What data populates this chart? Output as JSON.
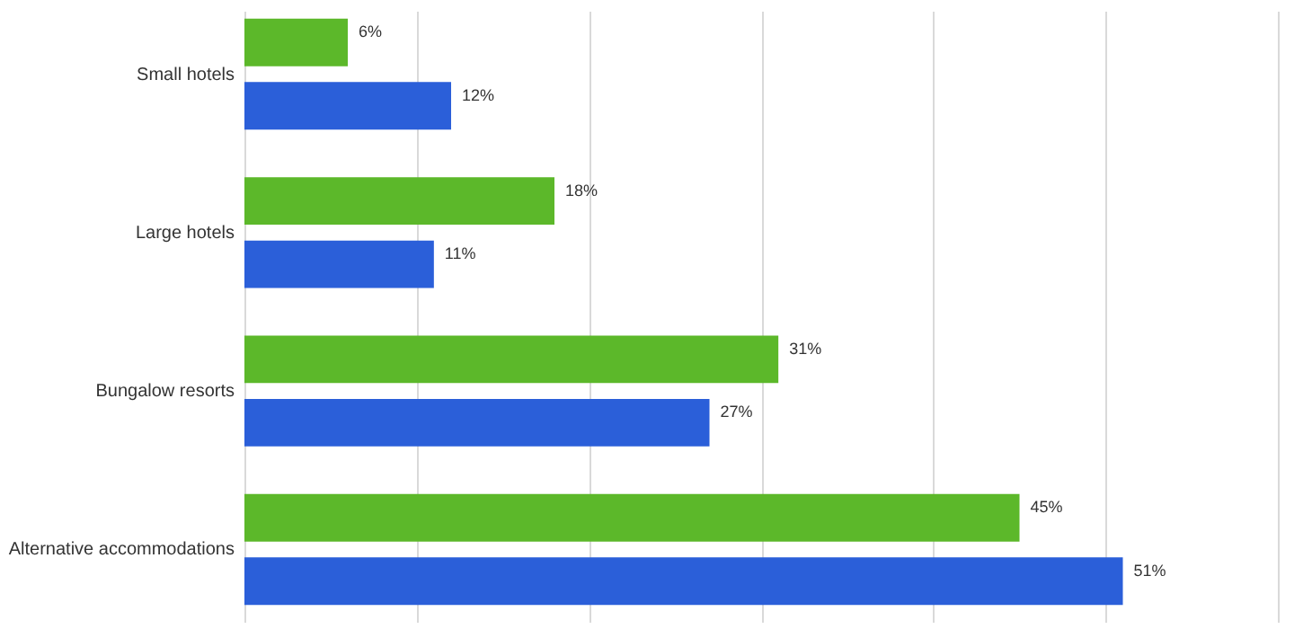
{
  "chart_data": {
    "type": "bar",
    "orientation": "horizontal",
    "categories": [
      "Small hotels",
      "Large hotels",
      "Bungalow resorts",
      "Alternative accommodations"
    ],
    "series": [
      {
        "color": "#5cb82a",
        "values": [
          6,
          18,
          31,
          45
        ],
        "value_labels": [
          "6%",
          "18%",
          "31%",
          "45%"
        ]
      },
      {
        "color": "#2b5fd9",
        "values": [
          12,
          11,
          27,
          51
        ],
        "value_labels": [
          "12%",
          "11%",
          "27%",
          "51%"
        ]
      }
    ],
    "xlim": [
      0,
      60
    ],
    "xticks": [
      {
        "value": 0,
        "label": null
      },
      {
        "value": 10,
        "label": null
      },
      {
        "value": 20,
        "label": null
      },
      {
        "value": 30,
        "label": null
      },
      {
        "value": 40,
        "label": null
      },
      {
        "value": 50,
        "label": null
      },
      {
        "value": 60,
        "label": null
      }
    ],
    "tick_labels": "y",
    "grid": "x",
    "legend": false
  }
}
